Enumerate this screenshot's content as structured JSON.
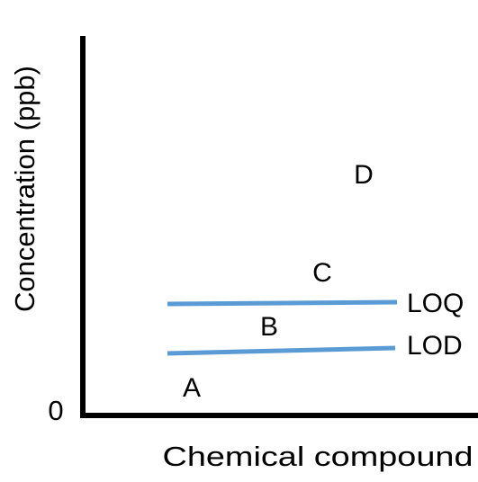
{
  "axes": {
    "y_label": "Concentration (ppb)",
    "x_label": "Chemical compound",
    "origin": "0"
  },
  "regions": [
    "A",
    "B",
    "C",
    "D"
  ],
  "thresholds": [
    "LOQ",
    "LOD"
  ]
}
